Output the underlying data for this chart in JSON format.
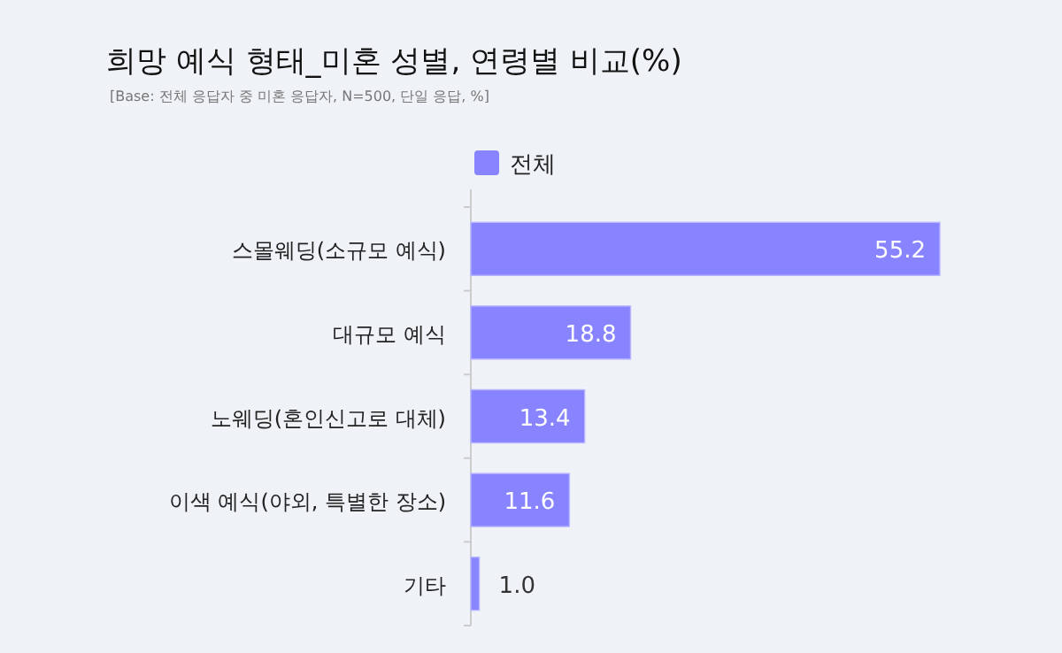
{
  "chart_data": {
    "type": "bar",
    "orientation": "horizontal",
    "title": "희망 예식 형태_미혼 성별, 연령별 비교(%)",
    "subtitle": "[Base: 전체 응답자 중 미혼 응답자, N=500, 단일 응답, %]",
    "categories": [
      "스몰웨딩(소규모 예식)",
      "대규모 예식",
      "노웨딩(혼인신고로 대체)",
      "이색 예식(야외, 특별한 장소)",
      "기타"
    ],
    "series": [
      {
        "name": "전체",
        "color": "#8884ff",
        "values": [
          55.2,
          18.8,
          13.4,
          11.6,
          1.0
        ],
        "value_labels": [
          "55.2",
          "18.8",
          "13.4",
          "11.6",
          "1.0"
        ]
      }
    ],
    "legend": "top"
  }
}
